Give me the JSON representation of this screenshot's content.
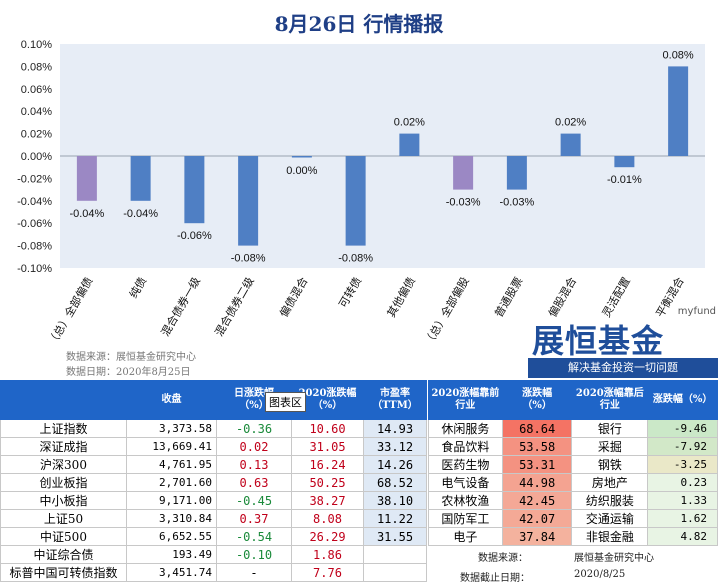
{
  "page": {
    "title": "8月26日  行情播报"
  },
  "chart_data": {
    "type": "bar",
    "categories": [
      "（总）全部偏债",
      "纯债",
      "混合债券一级",
      "混合债券二级",
      "偏债混合",
      "可转债",
      "其他偏债",
      "（总）全部偏股",
      "普通股票",
      "偏股混合",
      "灵活配置",
      "平衡混合"
    ],
    "values": [
      -0.04,
      -0.04,
      -0.06,
      -0.08,
      0.0,
      -0.08,
      0.02,
      -0.03,
      -0.03,
      0.02,
      -0.01,
      0.08
    ],
    "data_labels": [
      "-0.04%",
      "-0.04%",
      "-0.06%",
      "-0.08%",
      "0.00%",
      "-0.08%",
      "0.02%",
      "-0.03%",
      "-0.03%",
      "0.02%",
      "-0.01%",
      "0.08%"
    ],
    "ylim": [
      -0.1,
      0.1
    ],
    "yticks": [
      "-0.10%",
      "-0.08%",
      "-0.06%",
      "-0.04%",
      "-0.02%",
      "0.00%",
      "0.02%",
      "0.04%",
      "0.06%",
      "0.08%",
      "0.10%"
    ],
    "colors": {
      "bar": "#4f7fc4",
      "total_bar": "#9b88c4",
      "plot_bg": "#e7edf6"
    },
    "total_categories": [
      "（总）全部偏债",
      "（总）全部偏股"
    ]
  },
  "source": {
    "line1": "数据来源：展恒基金研究中心",
    "line2": "数据日期：2020年8月25日"
  },
  "logo": {
    "en": "myfund",
    "cn": "展恒基金",
    "slogan": "解决基金投资一切问题"
  },
  "tooltip": "图表区",
  "index_table": {
    "headers": [
      "",
      "收盘",
      "日涨跌幅\n（%）",
      "2020涨跌幅\n（%）",
      "市盈率\n（TTM）"
    ],
    "rows": [
      {
        "name": "上证指数",
        "close": "3,373.58",
        "day": "-0.36",
        "ytd": "10.60",
        "pe": "14.93"
      },
      {
        "name": "深证成指",
        "close": "13,669.41",
        "day": "0.02",
        "ytd": "31.05",
        "pe": "33.12"
      },
      {
        "name": "沪深300",
        "close": "4,761.95",
        "day": "0.13",
        "ytd": "16.24",
        "pe": "14.26"
      },
      {
        "name": "创业板指",
        "close": "2,701.60",
        "day": "0.63",
        "ytd": "50.25",
        "pe": "68.52"
      },
      {
        "name": "中小板指",
        "close": "9,171.00",
        "day": "-0.45",
        "ytd": "38.27",
        "pe": "38.10"
      },
      {
        "name": "上证50",
        "close": "3,310.84",
        "day": "0.37",
        "ytd": "8.08",
        "pe": "11.22"
      },
      {
        "name": "中证500",
        "close": "6,652.55",
        "day": "-0.54",
        "ytd": "26.29",
        "pe": "31.55"
      },
      {
        "name": "中证综合债",
        "close": "193.49",
        "day": "-0.10",
        "ytd": "1.86",
        "pe": ""
      },
      {
        "name": "标普中国可转债指数",
        "close": "3,451.74",
        "day": "-",
        "ytd": "7.76",
        "pe": ""
      }
    ]
  },
  "industry_table": {
    "headers": [
      "2020涨幅靠前\n行业",
      "涨跌幅\n（%）",
      "2020涨幅靠后\n行业",
      "涨跌幅（%）"
    ],
    "rows": [
      {
        "top": "休闲服务",
        "top_v": "68.64",
        "bot": "银行",
        "bot_v": "-9.46"
      },
      {
        "top": "食品饮料",
        "top_v": "53.58",
        "bot": "采掘",
        "bot_v": "-7.92"
      },
      {
        "top": "医药生物",
        "top_v": "53.31",
        "bot": "钢铁",
        "bot_v": "-3.25"
      },
      {
        "top": "电气设备",
        "top_v": "44.98",
        "bot": "房地产",
        "bot_v": "0.23"
      },
      {
        "top": "农林牧渔",
        "top_v": "42.45",
        "bot": "纺织服装",
        "bot_v": "1.33"
      },
      {
        "top": "国防军工",
        "top_v": "42.07",
        "bot": "交通运输",
        "bot_v": "1.62"
      },
      {
        "top": "电子",
        "top_v": "37.84",
        "bot": "非银金融",
        "bot_v": "4.82"
      }
    ],
    "footer": {
      "src_label": "数据来源：",
      "src_value": "展恒基金研究中心",
      "date_label": "数据截止日期：",
      "date_value": "2020/8/25"
    }
  }
}
